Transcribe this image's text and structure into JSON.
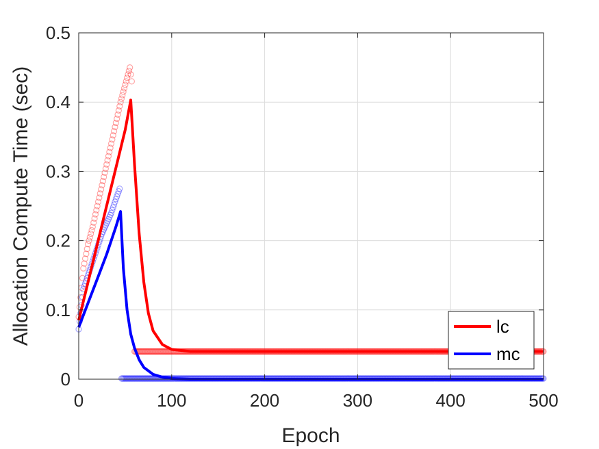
{
  "chart_data": {
    "type": "line",
    "title": "",
    "xlabel": "Epoch",
    "ylabel": "Allocation Compute Time (sec)",
    "xlim": [
      0,
      500
    ],
    "ylim": [
      0,
      0.5
    ],
    "xticks": [
      0,
      100,
      200,
      300,
      400,
      500
    ],
    "xtick_labels": [
      "0",
      "100",
      "200",
      "300",
      "400",
      "500"
    ],
    "yticks": [
      0,
      0.1,
      0.2,
      0.3,
      0.4,
      0.5
    ],
    "ytick_labels": [
      "0",
      "0.1",
      "0.2",
      "0.3",
      "0.4",
      "0.5"
    ],
    "grid": true,
    "legend_position": "bottom-right",
    "series": [
      {
        "name": "lc",
        "color": "#ff0000",
        "style": "line",
        "x": [
          0,
          10,
          20,
          30,
          40,
          50,
          56,
          60,
          65,
          70,
          75,
          80,
          90,
          100,
          120,
          150,
          200,
          300,
          400,
          500
        ],
        "y": [
          0.085,
          0.14,
          0.195,
          0.25,
          0.305,
          0.36,
          0.403,
          0.31,
          0.21,
          0.14,
          0.095,
          0.07,
          0.05,
          0.043,
          0.04,
          0.04,
          0.04,
          0.04,
          0.04,
          0.04
        ]
      },
      {
        "name": "mc",
        "color": "#0000ff",
        "style": "line",
        "x": [
          0,
          10,
          20,
          30,
          40,
          45,
          48,
          52,
          56,
          60,
          65,
          70,
          80,
          90,
          100,
          120,
          200,
          300,
          400,
          500
        ],
        "y": [
          0.075,
          0.11,
          0.145,
          0.18,
          0.22,
          0.242,
          0.16,
          0.1,
          0.065,
          0.045,
          0.028,
          0.017,
          0.007,
          0.003,
          0.001,
          0.0,
          0.0,
          0.0,
          0.0,
          0.0
        ]
      },
      {
        "name": "",
        "color": "#ff0000",
        "style": "markers",
        "x": [
          0,
          5,
          10,
          15,
          20,
          25,
          30,
          35,
          40,
          45,
          50,
          55,
          57,
          60,
          80,
          100,
          150,
          200,
          250,
          300,
          350,
          400,
          450,
          500
        ],
        "y": [
          0.09,
          0.16,
          0.195,
          0.22,
          0.25,
          0.28,
          0.31,
          0.34,
          0.37,
          0.4,
          0.425,
          0.45,
          0.43,
          0.04,
          0.04,
          0.04,
          0.04,
          0.04,
          0.04,
          0.04,
          0.04,
          0.04,
          0.04,
          0.04
        ]
      },
      {
        "name": "",
        "color": "#0000ff",
        "style": "markers",
        "x": [
          0,
          5,
          10,
          15,
          20,
          25,
          30,
          35,
          40,
          44,
          46,
          50,
          60,
          80,
          100,
          150,
          200,
          250,
          300,
          350,
          400,
          450,
          500
        ],
        "y": [
          0.072,
          0.13,
          0.15,
          0.17,
          0.19,
          0.21,
          0.225,
          0.24,
          0.26,
          0.275,
          0.001,
          0.001,
          0.001,
          0.001,
          0.001,
          0.001,
          0.001,
          0.001,
          0.001,
          0.001,
          0.001,
          0.001,
          0.001
        ]
      }
    ]
  }
}
